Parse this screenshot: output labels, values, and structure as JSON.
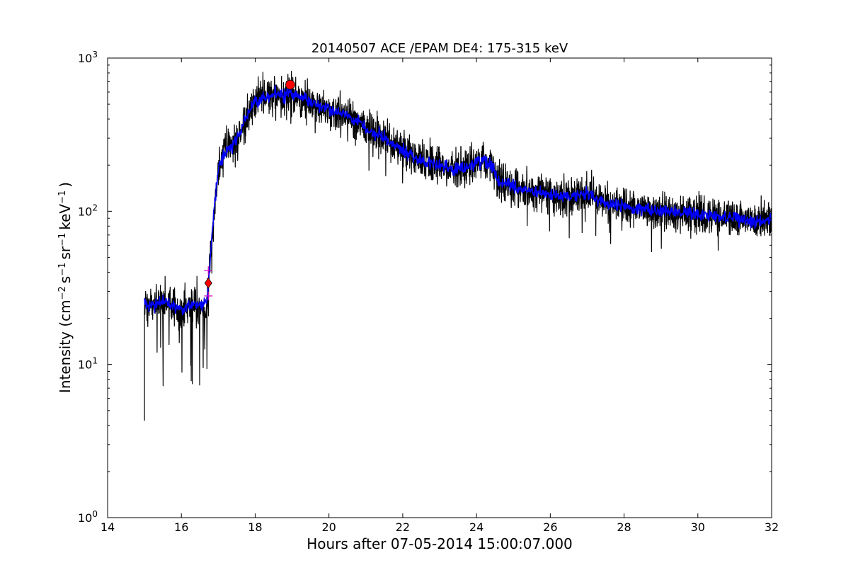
{
  "chart_data": {
    "type": "line",
    "title": "20140507 ACE /EPAM DE4: 175-315 keV",
    "xlabel": "Hours after 07-05-2014 15:00:07.000",
    "ylabel": "Intensity (cm",
    "ylabel_parts": {
      "cm_exp": "−2",
      "s": "s",
      "s_exp": "−1",
      "sr": "sr",
      "sr_exp": "−1",
      "kev": "keV",
      "kev_exp": "−1",
      "close": ")"
    },
    "x_scale": "linear",
    "y_scale": "log",
    "xlim": [
      14,
      32
    ],
    "ylim": [
      1,
      1000
    ],
    "x_ticks": [
      14,
      16,
      18,
      20,
      22,
      24,
      26,
      28,
      30,
      32
    ],
    "x_tick_labels": [
      "14",
      "16",
      "18",
      "20",
      "22",
      "24",
      "26",
      "28",
      "30",
      "32"
    ],
    "y_ticks": [
      1,
      10,
      100,
      1000
    ],
    "y_tick_labels": [
      {
        "base": "10",
        "exp": "0"
      },
      {
        "base": "10",
        "exp": "1"
      },
      {
        "base": "10",
        "exp": "2"
      },
      {
        "base": "10",
        "exp": "3"
      }
    ],
    "grid": false,
    "legend": "none",
    "series": [
      {
        "style": "raw",
        "color": "#000000",
        "x": [
          15.0,
          15.2,
          15.4,
          15.6,
          15.8,
          16.0,
          16.2,
          16.4,
          16.6,
          16.7,
          16.8,
          16.9,
          17.0,
          17.2,
          17.4,
          17.6,
          17.8,
          18.0,
          18.2,
          18.4,
          18.6,
          18.8,
          19.0,
          19.2,
          19.4,
          19.6,
          19.8,
          20.0,
          20.2,
          20.4,
          20.6,
          20.8,
          21.0,
          21.2,
          21.4,
          21.6,
          21.8,
          22.0,
          22.2,
          22.4,
          22.6,
          22.8,
          23.0,
          23.2,
          23.4,
          23.6,
          23.8,
          24.0,
          24.2,
          24.4,
          24.6,
          24.8,
          25.0,
          25.2,
          25.4,
          25.6,
          25.8,
          26.0,
          26.2,
          26.4,
          26.6,
          26.8,
          27.0,
          27.2,
          27.4,
          27.6,
          27.8,
          28.0,
          28.2,
          28.4,
          28.6,
          28.8,
          29.0,
          29.2,
          29.4,
          29.6,
          29.8,
          30.0,
          30.2,
          30.4,
          30.6,
          30.8,
          31.0,
          31.2,
          31.4,
          31.6,
          31.8,
          32.0
        ],
        "y": [
          25,
          24,
          26,
          25,
          24,
          23,
          24,
          25,
          24,
          26,
          55,
          110,
          190,
          250,
          270,
          330,
          440,
          510,
          560,
          560,
          580,
          570,
          600,
          560,
          540,
          500,
          490,
          470,
          440,
          430,
          400,
          390,
          350,
          330,
          310,
          290,
          270,
          250,
          235,
          220,
          210,
          205,
          200,
          195,
          190,
          190,
          200,
          210,
          215,
          200,
          155,
          150,
          145,
          140,
          135,
          135,
          130,
          130,
          125,
          125,
          125,
          130,
          130,
          120,
          115,
          110,
          110,
          110,
          105,
          105,
          105,
          100,
          100,
          100,
          100,
          98,
          97,
          95,
          95,
          93,
          92,
          90,
          90,
          88,
          87,
          86,
          86,
          88
        ]
      },
      {
        "style": "smoothed",
        "color": "#0000ff",
        "x": [
          15.0,
          15.2,
          15.4,
          15.6,
          15.8,
          16.0,
          16.2,
          16.4,
          16.6,
          16.7,
          16.8,
          16.9,
          17.0,
          17.2,
          17.4,
          17.6,
          17.8,
          18.0,
          18.2,
          18.4,
          18.6,
          18.8,
          19.0,
          19.2,
          19.4,
          19.6,
          19.8,
          20.0,
          20.2,
          20.4,
          20.6,
          20.8,
          21.0,
          21.2,
          21.4,
          21.6,
          21.8,
          22.0,
          22.2,
          22.4,
          22.6,
          22.8,
          23.0,
          23.2,
          23.4,
          23.6,
          23.8,
          24.0,
          24.2,
          24.4,
          24.6,
          24.8,
          25.0,
          25.2,
          25.4,
          25.6,
          25.8,
          26.0,
          26.2,
          26.4,
          26.6,
          26.8,
          27.0,
          27.2,
          27.4,
          27.6,
          27.8,
          28.0,
          28.2,
          28.4,
          28.6,
          28.8,
          29.0,
          29.2,
          29.4,
          29.6,
          29.8,
          30.0,
          30.2,
          30.4,
          30.6,
          30.8,
          31.0,
          31.2,
          31.4,
          31.6,
          31.8,
          32.0
        ],
        "y": [
          25,
          24,
          26,
          25,
          24,
          23,
          24,
          25,
          24,
          26,
          55,
          110,
          190,
          250,
          270,
          330,
          440,
          510,
          560,
          560,
          580,
          570,
          600,
          560,
          540,
          500,
          490,
          470,
          440,
          430,
          400,
          390,
          350,
          330,
          310,
          290,
          270,
          250,
          235,
          220,
          210,
          205,
          200,
          195,
          190,
          190,
          200,
          210,
          215,
          200,
          155,
          150,
          145,
          140,
          135,
          135,
          130,
          130,
          125,
          125,
          125,
          130,
          130,
          120,
          115,
          110,
          110,
          110,
          105,
          105,
          105,
          100,
          100,
          100,
          100,
          98,
          97,
          95,
          95,
          93,
          92,
          90,
          90,
          88,
          87,
          86,
          86,
          88
        ]
      }
    ],
    "markers": [
      {
        "kind": "onset",
        "shape": "diamond",
        "x": 16.73,
        "y": 34,
        "color": "#ff0000"
      },
      {
        "kind": "peak",
        "shape": "circle",
        "x": 18.95,
        "y": 670,
        "color": "#ff0000"
      }
    ],
    "error_marks": [
      {
        "x": 16.73,
        "y": 41,
        "color": "#cc00cc"
      },
      {
        "x": 16.73,
        "y": 28,
        "color": "#cc00cc"
      }
    ]
  }
}
